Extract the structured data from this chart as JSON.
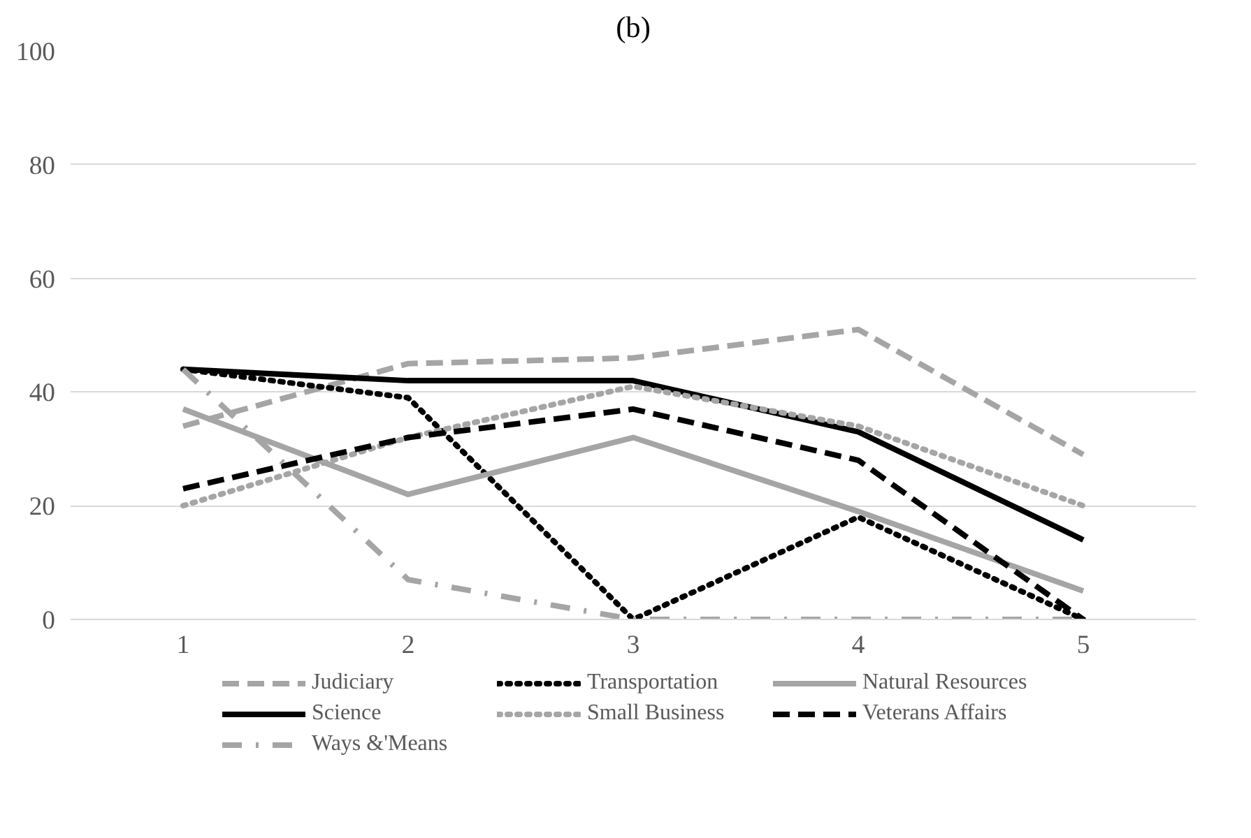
{
  "chart_data": {
    "type": "line",
    "title": "(b)",
    "categories": [
      "1",
      "2",
      "3",
      "4",
      "5"
    ],
    "ylim": [
      0,
      100
    ],
    "yticks": [
      0,
      20,
      40,
      60,
      80,
      100
    ],
    "grid": "y",
    "legend": "bottom",
    "series": [
      {
        "name": "Judiciary",
        "color": "#a5a5a5",
        "line_style": "dashed",
        "values": [
          34,
          45,
          46,
          51,
          29
        ]
      },
      {
        "name": "Transportation",
        "color": "#000000",
        "line_style": "dotted",
        "values": [
          44,
          39,
          0,
          18,
          0
        ]
      },
      {
        "name": "Natural Resources",
        "color": "#a5a5a5",
        "line_style": "solid",
        "values": [
          37,
          22,
          32,
          19,
          5
        ]
      },
      {
        "name": "Science",
        "color": "#000000",
        "line_style": "solid",
        "values": [
          44,
          42,
          42,
          33,
          14
        ]
      },
      {
        "name": "Small Business",
        "color": "#a5a5a5",
        "line_style": "dotted",
        "values": [
          20,
          32,
          41,
          34,
          20
        ]
      },
      {
        "name": "Veterans Affairs",
        "color": "#000000",
        "line_style": "dashed",
        "values": [
          23,
          32,
          37,
          28,
          0
        ]
      },
      {
        "name": "Ways &'Means",
        "color": "#a5a5a5",
        "line_style": "dashdot",
        "values": [
          44,
          7,
          0,
          0,
          0
        ]
      }
    ]
  }
}
